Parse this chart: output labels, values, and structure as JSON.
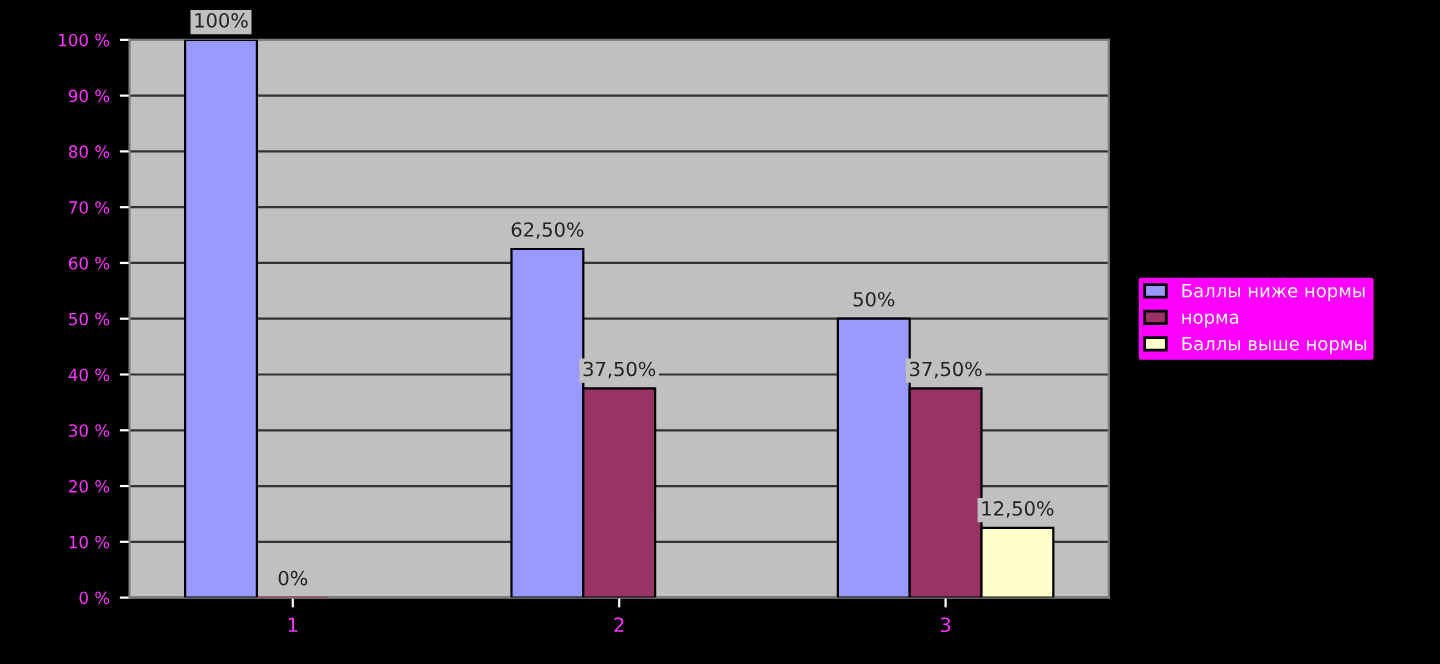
{
  "chart_data": {
    "type": "bar",
    "categories": [
      "1",
      "2",
      "3"
    ],
    "series": [
      {
        "name": "Баллы ниже нормы",
        "color": "#9999ff",
        "values": [
          100,
          62.5,
          50
        ],
        "value_labels": [
          "100%",
          "62,50%",
          "50%"
        ]
      },
      {
        "name": "норма",
        "color": "#993366",
        "values": [
          0,
          37.5,
          37.5
        ],
        "value_labels": [
          "0%",
          "37,50%",
          "37,50%"
        ]
      },
      {
        "name": "Баллы выше нормы",
        "color": "#ffffcc",
        "values": [
          null,
          null,
          12.5
        ],
        "value_labels": [
          null,
          null,
          "12,50%"
        ]
      }
    ],
    "ylim": [
      0,
      100
    ],
    "yticks": [
      {
        "value": 0,
        "label": "0 %"
      },
      {
        "value": 10,
        "label": "10 %"
      },
      {
        "value": 20,
        "label": "20 %"
      },
      {
        "value": 30,
        "label": "30 %"
      },
      {
        "value": 40,
        "label": "40 %"
      },
      {
        "value": 50,
        "label": "50 %"
      },
      {
        "value": 60,
        "label": "60 %"
      },
      {
        "value": 70,
        "label": "70 %"
      },
      {
        "value": 80,
        "label": "80 %"
      },
      {
        "value": 90,
        "label": "90 %"
      },
      {
        "value": 100,
        "label": "100 %"
      }
    ],
    "grid": "y",
    "legend": "right"
  }
}
